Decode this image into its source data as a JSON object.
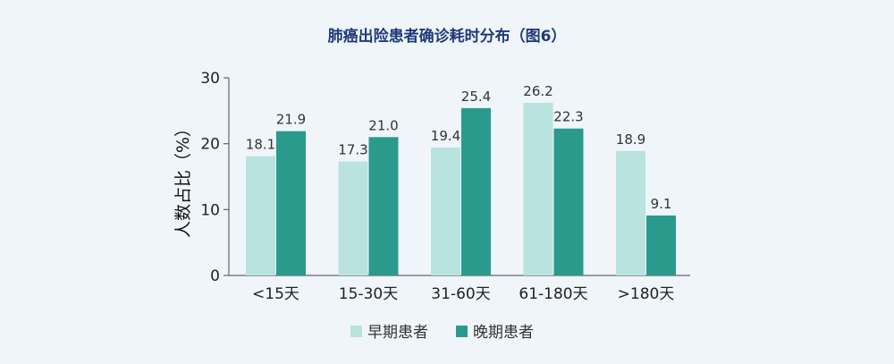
{
  "chart_data": {
    "type": "bar",
    "title": "肺癌出险患者确诊耗时分布（图6）",
    "ylabel": "人数占比（%）",
    "xlabel": "",
    "categories": [
      "<15天",
      "15-30天",
      "31-60天",
      "61-180天",
      ">180天"
    ],
    "series": [
      {
        "name": "早期患者",
        "values": [
          18.1,
          17.3,
          19.4,
          26.2,
          18.9
        ],
        "color": "#b8e3df"
      },
      {
        "name": "晚期患者",
        "values": [
          21.9,
          21.0,
          25.4,
          22.3,
          9.1
        ],
        "color": "#2a9a8c"
      }
    ],
    "data_labels": [
      [
        "18.1",
        "17.3",
        "19.4",
        "26.2",
        "18.9"
      ],
      [
        "21.9",
        "21.0",
        "25.4",
        "22.3",
        "9.1"
      ]
    ],
    "yticks": [
      "0",
      "10",
      "20",
      "30"
    ],
    "ylim": [
      0,
      30
    ],
    "grid": false,
    "legend": "bottom"
  }
}
